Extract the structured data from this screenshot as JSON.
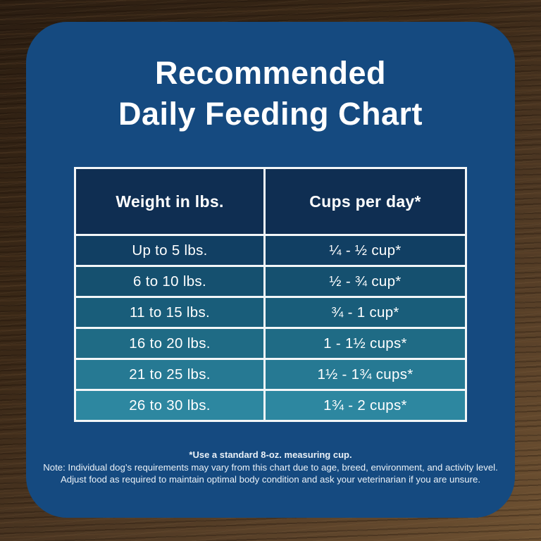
{
  "title": {
    "line1": "Recommended",
    "line2": "Daily Feeding Chart"
  },
  "table": {
    "columns": [
      "Weight in lbs.",
      "Cups per day*"
    ],
    "rows": [
      {
        "weight": "Up to 5 lbs.",
        "cups": "¼ - ½ cup*"
      },
      {
        "weight": "6 to 10 lbs.",
        "cups": "½ - ¾ cup*"
      },
      {
        "weight": "11 to 15 lbs.",
        "cups": "¾ - 1 cup*"
      },
      {
        "weight": "16 to 20 lbs.",
        "cups": "1 - 1½ cups*"
      },
      {
        "weight": "21 to 25 lbs.",
        "cups": "1½ - 1¾ cups*"
      },
      {
        "weight": "26 to 30 lbs.",
        "cups": "1¾ - 2 cups*"
      }
    ],
    "row_colors": [
      "#113f63",
      "#15506f",
      "#195d7a",
      "#1f6b85",
      "#267993",
      "#2d87a0"
    ]
  },
  "footnote": {
    "line1": "*Use a standard 8-oz. measuring cup.",
    "line2": "Note: Individual dog’s requirements may vary from this chart due to age, breed, environment, and activity level.",
    "line3": "Adjust food as required to maintain optimal body condition and ask your veterinarian if you are unsure."
  },
  "colors": {
    "card_background": "#154a80",
    "header_cell_background": "#0f2e52",
    "table_border": "#f2f6f8",
    "text": "#ffffff"
  },
  "chart_data": {
    "type": "table",
    "title": "Recommended Daily Feeding Chart",
    "columns": [
      "Weight in lbs.",
      "Cups per day*"
    ],
    "rows": [
      [
        "Up to 5 lbs.",
        "¼ - ½ cup*"
      ],
      [
        "6 to 10 lbs.",
        "½ - ¾ cup*"
      ],
      [
        "11 to 15 lbs.",
        "¾ - 1 cup*"
      ],
      [
        "16 to 20 lbs.",
        "1 - 1½ cups*"
      ],
      [
        "21 to 25 lbs.",
        "1½ - 1¾ cups*"
      ],
      [
        "26 to 30 lbs.",
        "1¾ - 2 cups*"
      ]
    ],
    "footnotes": [
      "*Use a standard 8-oz. measuring cup.",
      "Note: Individual dog’s requirements may vary from this chart due to age, breed, environment, and activity level.",
      "Adjust food as required to maintain optimal body condition and ask your veterinarian if you are unsure."
    ]
  }
}
